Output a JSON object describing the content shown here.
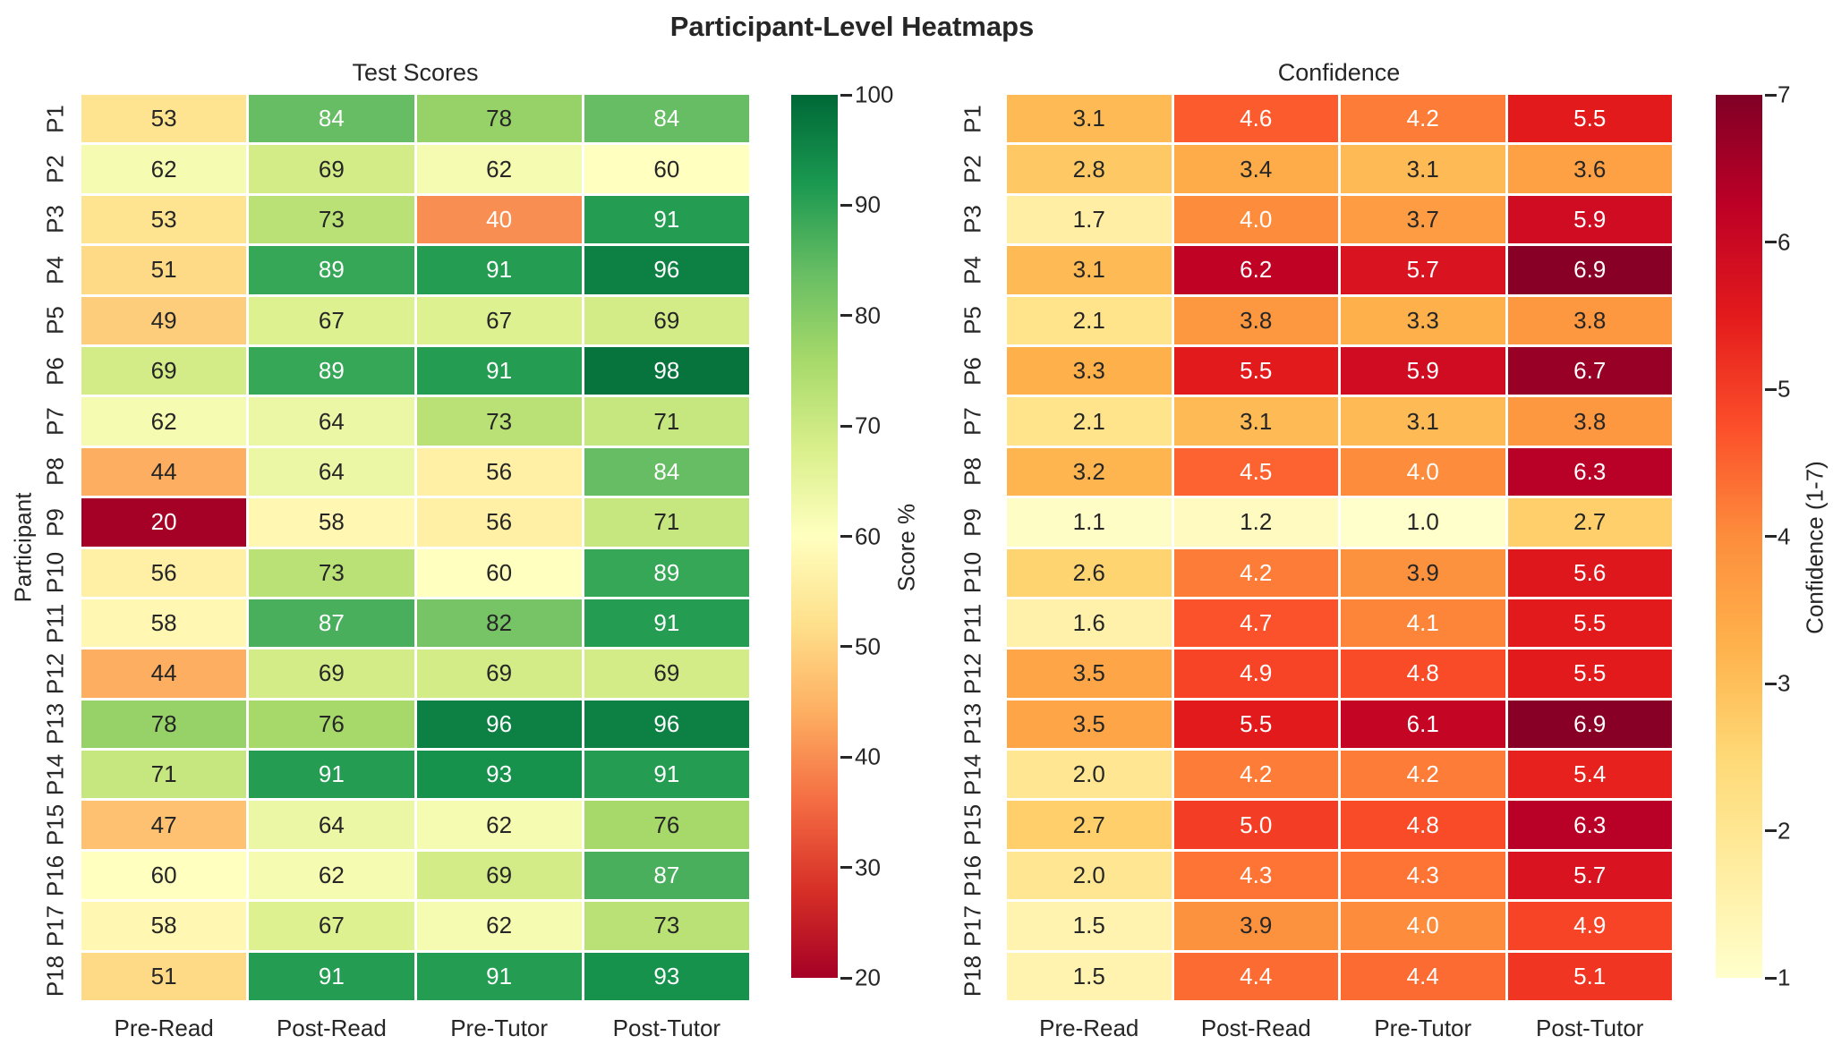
{
  "title": "Participant-Level Heatmaps",
  "colors": {
    "text": "#262626",
    "background": "#ffffff",
    "cell_annotation_light": "#ffffff",
    "cell_grid_line": "#ffffff"
  },
  "chart_data": [
    {
      "type": "heatmap",
      "title": "Test Scores",
      "ylabel": "Participant",
      "colorbar_label": "Score %",
      "colormap": "RdYlGn",
      "vmin": 20,
      "vmax": 100,
      "colorbar_ticks": [
        100,
        90,
        80,
        70,
        60,
        50,
        40,
        30,
        20
      ],
      "value_decimals": 0,
      "columns": [
        "Pre-Read",
        "Post-Read",
        "Pre-Tutor",
        "Post-Tutor"
      ],
      "rows": [
        "P1",
        "P2",
        "P3",
        "P4",
        "P5",
        "P6",
        "P7",
        "P8",
        "P9",
        "P10",
        "P11",
        "P12",
        "P13",
        "P14",
        "P15",
        "P16",
        "P17",
        "P18"
      ],
      "values": [
        [
          53,
          84,
          78,
          84
        ],
        [
          62,
          69,
          62,
          60
        ],
        [
          53,
          73,
          40,
          91
        ],
        [
          51,
          89,
          91,
          96
        ],
        [
          49,
          67,
          67,
          69
        ],
        [
          69,
          89,
          91,
          98
        ],
        [
          62,
          64,
          73,
          71
        ],
        [
          44,
          64,
          56,
          84
        ],
        [
          20,
          58,
          56,
          71
        ],
        [
          56,
          73,
          60,
          89
        ],
        [
          58,
          87,
          82,
          91
        ],
        [
          44,
          69,
          69,
          69
        ],
        [
          78,
          76,
          96,
          96
        ],
        [
          71,
          91,
          93,
          91
        ],
        [
          47,
          64,
          62,
          76
        ],
        [
          60,
          62,
          69,
          87
        ],
        [
          58,
          67,
          62,
          73
        ],
        [
          51,
          91,
          91,
          93
        ]
      ]
    },
    {
      "type": "heatmap",
      "title": "Confidence",
      "ylabel": "",
      "colorbar_label": "Confidence (1-7)",
      "colormap": "YlOrRd",
      "vmin": 1,
      "vmax": 7,
      "colorbar_ticks": [
        7,
        6,
        5,
        4,
        3,
        2,
        1
      ],
      "value_decimals": 1,
      "columns": [
        "Pre-Read",
        "Post-Read",
        "Pre-Tutor",
        "Post-Tutor"
      ],
      "rows": [
        "P1",
        "P2",
        "P3",
        "P4",
        "P5",
        "P6",
        "P7",
        "P8",
        "P9",
        "P10",
        "P11",
        "P12",
        "P13",
        "P14",
        "P15",
        "P16",
        "P17",
        "P18"
      ],
      "values": [
        [
          3.1,
          4.6,
          4.2,
          5.5
        ],
        [
          2.8,
          3.4,
          3.1,
          3.6
        ],
        [
          1.7,
          4.0,
          3.7,
          5.9
        ],
        [
          3.1,
          6.2,
          5.7,
          6.9
        ],
        [
          2.1,
          3.8,
          3.3,
          3.8
        ],
        [
          3.3,
          5.5,
          5.9,
          6.7
        ],
        [
          2.1,
          3.1,
          3.1,
          3.8
        ],
        [
          3.2,
          4.5,
          4.0,
          6.3
        ],
        [
          1.1,
          1.2,
          1.0,
          2.7
        ],
        [
          2.6,
          4.2,
          3.9,
          5.6
        ],
        [
          1.6,
          4.7,
          4.1,
          5.5
        ],
        [
          3.5,
          4.9,
          4.8,
          5.5
        ],
        [
          3.5,
          5.5,
          6.1,
          6.9
        ],
        [
          2.0,
          4.2,
          4.2,
          5.4
        ],
        [
          2.7,
          5.0,
          4.8,
          6.3
        ],
        [
          2.0,
          4.3,
          4.3,
          5.7
        ],
        [
          1.5,
          3.9,
          4.0,
          4.9
        ],
        [
          1.5,
          4.4,
          4.4,
          5.1
        ]
      ]
    }
  ]
}
